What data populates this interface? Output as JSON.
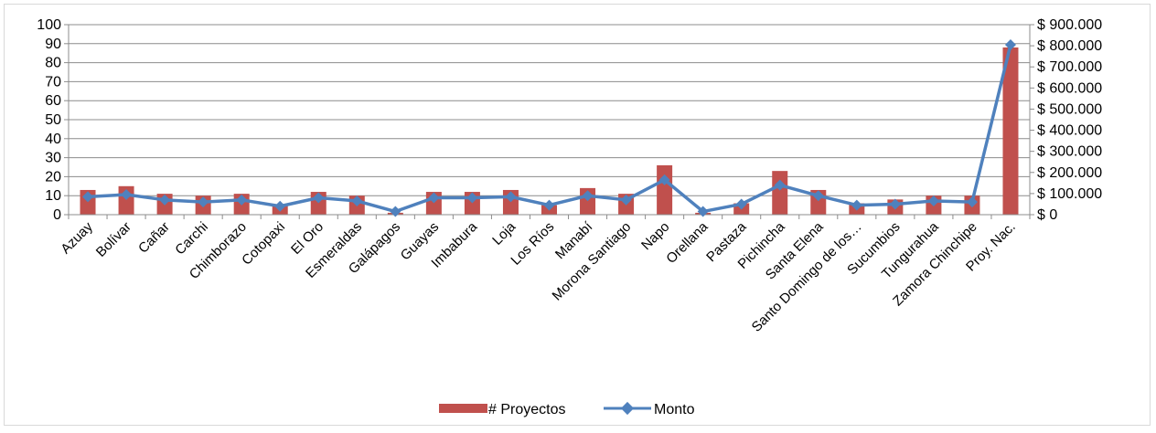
{
  "chart_data": {
    "type": "bar",
    "categories": [
      "Azuay",
      "Bolívar",
      "Cañar",
      "Carchi",
      "Chimborazo",
      "Cotopaxi",
      "El Oro",
      "Esmeraldas",
      "Galápagos",
      "Guayas",
      "Imbabura",
      "Loja",
      "Los Ríos",
      "Manabí",
      "Morona Santiago",
      "Napo",
      "Orellana",
      "Pastaza",
      "Pichincha",
      "Santa Elena",
      "Santo Domingo de los…",
      "Sucumbios",
      "Tungurahua",
      "Zamora Chinchipe",
      "Proy. Nac."
    ],
    "series": [
      {
        "name": "# Proyectos",
        "type": "bar",
        "axis": "left",
        "color": "#c0504d",
        "values": [
          13,
          15,
          11,
          10,
          11,
          5,
          12,
          10,
          1,
          12,
          12,
          13,
          5,
          14,
          11,
          26,
          1,
          6,
          23,
          13,
          6,
          8,
          10,
          10,
          88
        ]
      },
      {
        "name": "Monto",
        "type": "line",
        "axis": "right",
        "color": "#4f81bd",
        "values": [
          85000,
          95000,
          70000,
          60000,
          70000,
          40000,
          80000,
          65000,
          15000,
          80000,
          80000,
          85000,
          45000,
          90000,
          70000,
          165000,
          15000,
          50000,
          140000,
          90000,
          45000,
          50000,
          65000,
          60000,
          805000
        ]
      }
    ],
    "y_left": {
      "min": 0,
      "max": 100,
      "step": 10,
      "ticks": [
        "0",
        "10",
        "20",
        "30",
        "40",
        "50",
        "60",
        "70",
        "80",
        "90",
        "100"
      ]
    },
    "y_right": {
      "min": 0,
      "max": 900000,
      "step": 100000,
      "ticks": [
        "$ 0",
        "$ 100.000",
        "$ 200.000",
        "$ 300.000",
        "$ 400.000",
        "$ 500.000",
        "$ 600.000",
        "$ 700.000",
        "$ 800.000",
        "$ 900.000"
      ]
    },
    "grid": true,
    "legend": {
      "position": "bottom",
      "items": [
        "# Proyectos",
        "Monto"
      ]
    }
  }
}
